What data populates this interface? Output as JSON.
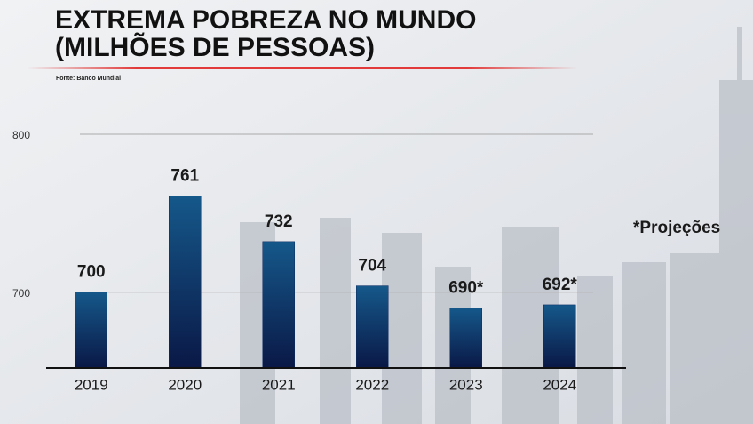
{
  "chart_data": {
    "type": "bar",
    "title": [
      "EXTREMA POBREZA NO MUNDO",
      "(MILHÕES DE PESSOAS)"
    ],
    "source": "Fonte: Banco Mundial",
    "note": "*Projeções",
    "categories": [
      "2019",
      "2020",
      "2021",
      "2022",
      "2023",
      "2024"
    ],
    "values": [
      700,
      761,
      732,
      704,
      690,
      692
    ],
    "value_labels": [
      "700",
      "761",
      "732",
      "704",
      "690*",
      "692*"
    ],
    "color": "#0d2c63",
    "ylim": [
      652,
      800
    ],
    "yticks": [
      700,
      800
    ],
    "grid": true
  }
}
